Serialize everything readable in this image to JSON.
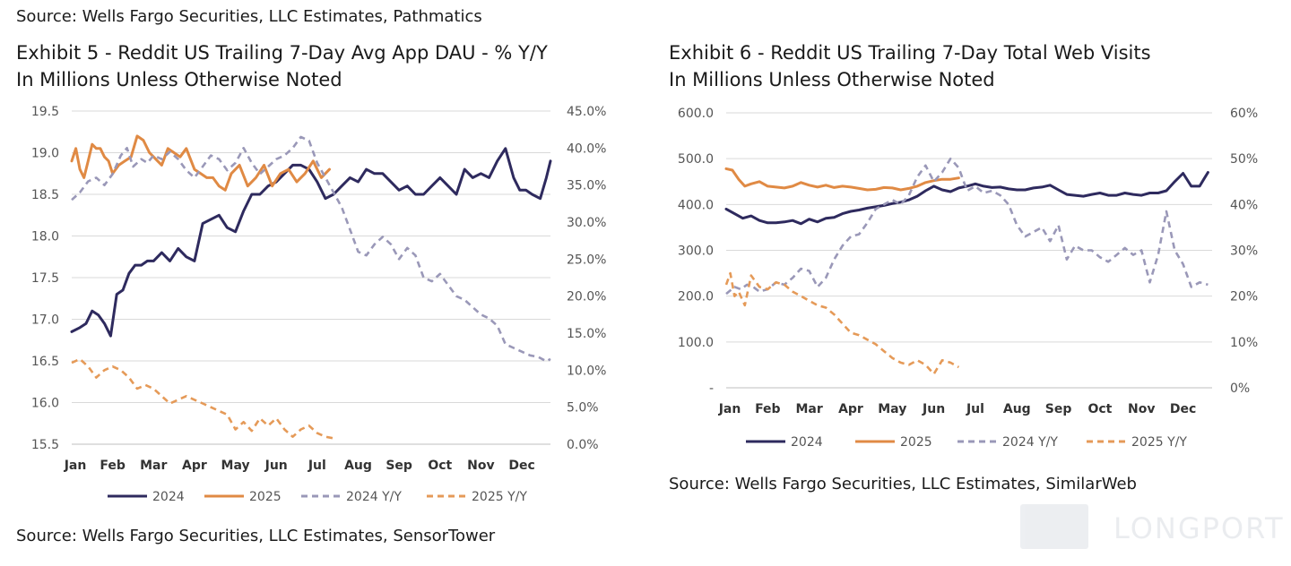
{
  "top_source": "Source: Wells Fargo Securities, LLC Estimates, Pathmatics",
  "watermark": "LONGPORT",
  "colors": {
    "c2024": "#2e2a5e",
    "c2025": "#e08a44",
    "y2024": "#9a98b8",
    "y2025": "#e59a58",
    "grid": "#d9d9d9"
  },
  "exhibit5": {
    "title_line1": "Exhibit 5 - Reddit US Trailing 7-Day Avg App DAU - % Y/Y",
    "title_line2": "In Millions Unless Otherwise Noted",
    "source": "Source: Wells Fargo Securities, LLC Estimates, SensorTower"
  },
  "exhibit6": {
    "title_line1": "Exhibit 6 - Reddit US Trailing 7-Day Total Web Visits",
    "title_line2": "In Millions Unless Otherwise Noted",
    "source": "Source: Wells Fargo Securities, LLC Estimates, SimilarWeb"
  },
  "chart_data": [
    {
      "type": "line",
      "title": "Exhibit 5 - Reddit US Trailing 7-Day Avg App DAU - % Y/Y",
      "subtitle": "In Millions Unless Otherwise Noted",
      "categories": [
        "Jan",
        "Feb",
        "Mar",
        "Apr",
        "May",
        "Jun",
        "Jul",
        "Aug",
        "Sep",
        "Oct",
        "Nov",
        "Dec"
      ],
      "ylim": [
        15.5,
        19.5
      ],
      "y_ticks": [
        "15.5",
        "16.0",
        "16.5",
        "17.0",
        "17.5",
        "18.0",
        "18.5",
        "19.0",
        "19.5"
      ],
      "y2lim": [
        0,
        45
      ],
      "y2_ticks": [
        "0.0%",
        "5.0%",
        "10.0%",
        "15.0%",
        "20.0%",
        "25.0%",
        "30.0%",
        "35.0%",
        "40.0%",
        "45.0%"
      ],
      "legend": [
        "2024",
        "2025",
        "2024 Y/Y",
        "2025 Y/Y"
      ],
      "legend_position": "bottom",
      "grid": true,
      "series": [
        {
          "name": "2024",
          "axis": "left",
          "style": "solid",
          "color_key": "c2024",
          "x": [
            0,
            0.2,
            0.35,
            0.5,
            0.65,
            0.8,
            0.95,
            1.1,
            1.25,
            1.4,
            1.55,
            1.7,
            1.85,
            2.0,
            2.2,
            2.4,
            2.6,
            2.8,
            3.0,
            3.2,
            3.4,
            3.6,
            3.8,
            4.0,
            4.2,
            4.4,
            4.6,
            4.8,
            5.0,
            5.2,
            5.4,
            5.6,
            5.8,
            6.0,
            6.2,
            6.4,
            6.6,
            6.8,
            7.0,
            7.2,
            7.4,
            7.6,
            7.8,
            8.0,
            8.2,
            8.4,
            8.6,
            8.8,
            9.0,
            9.2,
            9.4,
            9.6,
            9.8,
            10.0,
            10.2,
            10.4,
            10.6,
            10.8,
            10.95,
            11.1,
            11.25,
            11.45,
            11.6,
            11.7
          ],
          "values": [
            16.85,
            16.9,
            16.95,
            17.1,
            17.05,
            16.95,
            16.8,
            17.3,
            17.35,
            17.55,
            17.65,
            17.65,
            17.7,
            17.7,
            17.8,
            17.7,
            17.85,
            17.75,
            17.7,
            18.15,
            18.2,
            18.25,
            18.1,
            18.05,
            18.3,
            18.5,
            18.5,
            18.6,
            18.65,
            18.75,
            18.85,
            18.85,
            18.8,
            18.65,
            18.45,
            18.5,
            18.6,
            18.7,
            18.65,
            18.8,
            18.75,
            18.75,
            18.65,
            18.55,
            18.6,
            18.5,
            18.5,
            18.6,
            18.7,
            18.6,
            18.5,
            18.8,
            18.7,
            18.75,
            18.7,
            18.9,
            19.05,
            18.7,
            18.55,
            18.55,
            18.5,
            18.45,
            18.7,
            18.9
          ]
        },
        {
          "name": "2025",
          "axis": "left",
          "style": "solid",
          "color_key": "c2025",
          "x": [
            0,
            0.1,
            0.2,
            0.3,
            0.4,
            0.5,
            0.6,
            0.7,
            0.8,
            0.9,
            1.0,
            1.15,
            1.3,
            1.45,
            1.6,
            1.75,
            1.9,
            2.0,
            2.1,
            2.2,
            2.35,
            2.5,
            2.65,
            2.8,
            3.0,
            3.15,
            3.3,
            3.45,
            3.6,
            3.75,
            3.9,
            4.1,
            4.3,
            4.5,
            4.7,
            4.9,
            5.1,
            5.3,
            5.5,
            5.7,
            5.9,
            6.1,
            6.3
          ],
          "values": [
            18.9,
            19.05,
            18.8,
            18.7,
            18.9,
            19.1,
            19.05,
            19.05,
            18.95,
            18.9,
            18.75,
            18.85,
            18.9,
            18.95,
            19.2,
            19.15,
            19.0,
            18.95,
            18.9,
            18.85,
            19.05,
            19.0,
            18.95,
            19.05,
            18.8,
            18.75,
            18.7,
            18.7,
            18.6,
            18.55,
            18.75,
            18.85,
            18.6,
            18.7,
            18.85,
            18.6,
            18.75,
            18.8,
            18.65,
            18.75,
            18.9,
            18.7,
            18.8
          ]
        },
        {
          "name": "2024 Y/Y",
          "axis": "right",
          "style": "dashed",
          "color_key": "y2024",
          "x": [
            0,
            0.2,
            0.4,
            0.6,
            0.8,
            1.0,
            1.2,
            1.35,
            1.5,
            1.7,
            1.85,
            2.0,
            2.2,
            2.4,
            2.6,
            2.8,
            3.0,
            3.2,
            3.4,
            3.6,
            3.8,
            4.0,
            4.2,
            4.4,
            4.6,
            4.8,
            5.0,
            5.2,
            5.4,
            5.6,
            5.8,
            6.0,
            6.2,
            6.4,
            6.6,
            6.8,
            7.0,
            7.2,
            7.4,
            7.6,
            7.8,
            8.0,
            8.2,
            8.4,
            8.6,
            8.8,
            9.0,
            9.2,
            9.4,
            9.6,
            9.8,
            10.0,
            10.2,
            10.4,
            10.6,
            10.8,
            11.0,
            11.2,
            11.4,
            11.6,
            11.7
          ],
          "values": [
            33.0,
            34.0,
            35.5,
            36.0,
            35.0,
            36.5,
            39.0,
            40.0,
            37.5,
            38.5,
            38.0,
            39.0,
            38.5,
            39.5,
            38.5,
            37.0,
            36.0,
            37.5,
            39.0,
            38.5,
            37.0,
            38.0,
            40.0,
            38.0,
            36.5,
            37.5,
            38.5,
            39.0,
            40.0,
            41.5,
            41.0,
            38.0,
            36.0,
            34.0,
            32.0,
            29.0,
            26.0,
            25.5,
            27.0,
            28.0,
            27.0,
            25.0,
            26.5,
            25.5,
            22.5,
            22.0,
            23.0,
            21.5,
            20.0,
            19.5,
            18.5,
            17.5,
            17.0,
            16.0,
            13.5,
            13.0,
            12.5,
            12.0,
            11.8,
            11.2,
            11.5
          ]
        },
        {
          "name": "2025 Y/Y",
          "axis": "right",
          "style": "dashed",
          "color_key": "y2025",
          "x": [
            0,
            0.2,
            0.4,
            0.6,
            0.8,
            1.0,
            1.2,
            1.4,
            1.6,
            1.8,
            2.0,
            2.2,
            2.4,
            2.6,
            2.8,
            3.0,
            3.2,
            3.4,
            3.6,
            3.8,
            4.0,
            4.2,
            4.4,
            4.6,
            4.8,
            5.0,
            5.2,
            5.4,
            5.6,
            5.8,
            6.0,
            6.2,
            6.4
          ],
          "values": [
            11.0,
            11.5,
            10.5,
            9.0,
            10.0,
            10.5,
            10.0,
            9.0,
            7.5,
            8.0,
            7.5,
            6.5,
            5.5,
            6.0,
            6.5,
            6.0,
            5.5,
            5.0,
            4.5,
            4.0,
            2.0,
            3.0,
            1.8,
            3.5,
            2.5,
            3.5,
            2.0,
            1.0,
            2.0,
            2.5,
            1.5,
            1.0,
            0.8
          ]
        }
      ]
    },
    {
      "type": "line",
      "title": "Exhibit 6 - Reddit US Trailing 7-Day Total Web Visits",
      "subtitle": "In Millions Unless Otherwise Noted",
      "categories": [
        "Jan",
        "Feb",
        "Mar",
        "Apr",
        "May",
        "Jun",
        "Jul",
        "Aug",
        "Sep",
        "Oct",
        "Nov",
        "Dec"
      ],
      "ylim": [
        0,
        600
      ],
      "y_ticks": [
        "-",
        "100.0",
        "200.0",
        "300.0",
        "400.0",
        "500.0",
        "600.0"
      ],
      "y2lim": [
        0,
        60
      ],
      "y2_ticks": [
        "0%",
        "10%",
        "20%",
        "30%",
        "40%",
        "50%",
        "60%"
      ],
      "legend": [
        "2024",
        "2025",
        "2024 Y/Y",
        "2025  Y/Y"
      ],
      "legend_position": "bottom",
      "grid": true,
      "series": [
        {
          "name": "2024",
          "axis": "left",
          "style": "solid",
          "color_key": "c2024",
          "x": [
            0,
            0.2,
            0.4,
            0.6,
            0.8,
            1.0,
            1.2,
            1.4,
            1.6,
            1.8,
            2.0,
            2.2,
            2.4,
            2.6,
            2.8,
            3.0,
            3.2,
            3.4,
            3.6,
            3.8,
            4.0,
            4.2,
            4.4,
            4.6,
            4.8,
            5.0,
            5.2,
            5.4,
            5.6,
            5.8,
            6.0,
            6.2,
            6.4,
            6.6,
            6.8,
            7.0,
            7.2,
            7.4,
            7.6,
            7.8,
            8.0,
            8.2,
            8.4,
            8.6,
            8.8,
            9.0,
            9.2,
            9.4,
            9.6,
            9.8,
            10.0,
            10.2,
            10.4,
            10.6,
            10.8,
            11.0,
            11.2,
            11.4,
            11.5,
            11.6
          ],
          "values": [
            390,
            380,
            370,
            375,
            365,
            360,
            360,
            362,
            365,
            358,
            368,
            362,
            370,
            372,
            380,
            385,
            388,
            392,
            395,
            398,
            402,
            405,
            410,
            418,
            430,
            440,
            432,
            428,
            436,
            440,
            445,
            440,
            437,
            438,
            434,
            432,
            432,
            436,
            438,
            442,
            432,
            422,
            420,
            418,
            422,
            425,
            420,
            420,
            425,
            422,
            420,
            425,
            425,
            430,
            450,
            468,
            440,
            440,
            455,
            470
          ]
        },
        {
          "name": "2025",
          "axis": "left",
          "style": "solid",
          "color_key": "c2025",
          "x": [
            0,
            0.15,
            0.3,
            0.45,
            0.6,
            0.8,
            1.0,
            1.2,
            1.4,
            1.6,
            1.8,
            2.0,
            2.2,
            2.4,
            2.6,
            2.8,
            3.0,
            3.2,
            3.4,
            3.6,
            3.8,
            4.0,
            4.2,
            4.4,
            4.6,
            4.8,
            5.0,
            5.2,
            5.4,
            5.6
          ],
          "values": [
            478,
            475,
            455,
            440,
            445,
            450,
            440,
            438,
            436,
            440,
            448,
            442,
            438,
            442,
            437,
            440,
            438,
            435,
            432,
            433,
            437,
            436,
            432,
            435,
            440,
            448,
            452,
            455,
            455,
            458
          ]
        },
        {
          "name": "2024 Y/Y",
          "axis": "right",
          "style": "dashed",
          "color_key": "y2024",
          "x": [
            0,
            0.2,
            0.35,
            0.5,
            0.65,
            0.8,
            1.0,
            1.2,
            1.4,
            1.6,
            1.8,
            2.0,
            2.2,
            2.4,
            2.6,
            2.8,
            3.0,
            3.2,
            3.4,
            3.6,
            3.8,
            4.0,
            4.2,
            4.4,
            4.6,
            4.8,
            5.0,
            5.2,
            5.4,
            5.6,
            5.8,
            6.0,
            6.2,
            6.4,
            6.6,
            6.8,
            7.0,
            7.2,
            7.4,
            7.6,
            7.8,
            8.0,
            8.2,
            8.4,
            8.6,
            8.8,
            9.0,
            9.2,
            9.4,
            9.6,
            9.8,
            10.0,
            10.2,
            10.4,
            10.6,
            10.8,
            11.0,
            11.2,
            11.4,
            11.6
          ],
          "values": [
            20.5,
            22.0,
            21.5,
            22.5,
            22.0,
            21.0,
            21.5,
            23.0,
            22.5,
            24.0,
            26.0,
            25.5,
            22.0,
            24.0,
            28.0,
            31.0,
            33.0,
            33.5,
            36.0,
            39.0,
            40.0,
            41.0,
            40.0,
            42.0,
            46.0,
            48.5,
            45.0,
            47.0,
            50.0,
            48.0,
            43.0,
            44.0,
            42.5,
            43.0,
            42.0,
            40.0,
            35.5,
            33.0,
            34.0,
            35.0,
            32.0,
            35.5,
            28.0,
            31.0,
            30.0,
            30.0,
            28.5,
            27.5,
            29.0,
            30.5,
            29.0,
            30.0,
            23.0,
            29.0,
            38.5,
            30.0,
            27.0,
            22.0,
            23.0,
            22.5
          ]
        },
        {
          "name": "2025  Y/Y",
          "axis": "right",
          "style": "dashed",
          "color_key": "y2025",
          "x": [
            0,
            0.1,
            0.2,
            0.3,
            0.45,
            0.6,
            0.8,
            1.0,
            1.2,
            1.4,
            1.6,
            1.8,
            2.0,
            2.2,
            2.4,
            2.6,
            2.8,
            3.0,
            3.2,
            3.4,
            3.6,
            3.8,
            4.0,
            4.2,
            4.4,
            4.6,
            4.8,
            5.0,
            5.2,
            5.4,
            5.6
          ],
          "values": [
            22.5,
            25.0,
            20.0,
            21.0,
            18.0,
            24.5,
            22.0,
            21.5,
            23.0,
            22.5,
            21.0,
            20.0,
            19.0,
            18.0,
            17.5,
            16.0,
            14.0,
            12.0,
            11.5,
            10.5,
            9.5,
            8.0,
            6.5,
            5.5,
            5.0,
            6.0,
            5.0,
            3.0,
            6.0,
            5.5,
            4.5
          ]
        }
      ]
    }
  ]
}
